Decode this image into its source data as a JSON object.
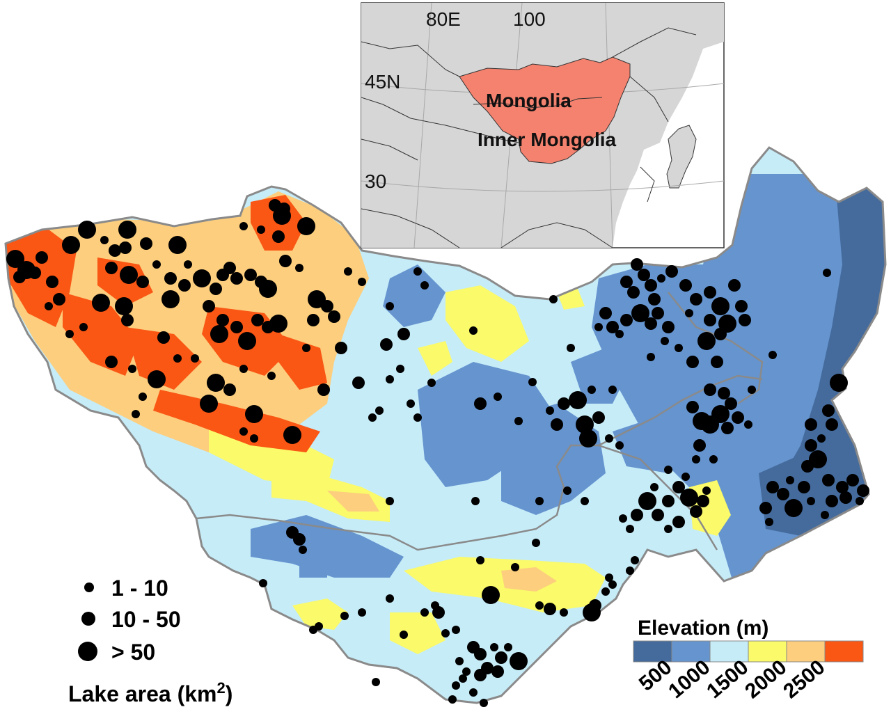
{
  "inset": {
    "lon_labels": [
      "80E",
      "100"
    ],
    "lat_labels": [
      "45N",
      "30"
    ],
    "regions": [
      "Mongolia",
      "Inner Mongolia"
    ],
    "colors": {
      "land": "#d6d6d6",
      "highlight": "#f4826f",
      "graticule": "#a8a8a8"
    }
  },
  "lake_legend": {
    "classes": [
      "1 - 10",
      "10 - 50",
      "> 50"
    ],
    "title": "Lake area (km",
    "title_sup": "2",
    "title_end": ")"
  },
  "elevation_legend": {
    "title": "Elevation (m)",
    "ticks": [
      "500",
      "1000",
      "1500",
      "2000",
      "2500"
    ],
    "colors": [
      "#456b9d",
      "#6594cf",
      "#c6ecf8",
      "#fafa6a",
      "#fcce7e",
      "#fa5614"
    ]
  },
  "map_colors": {
    "lowland": "#c6ecf8",
    "plain": "#6594cf",
    "deep": "#456b9d",
    "yellow": "#fafa6a",
    "orange": "#fcce7e",
    "red": "#fa5614",
    "border": "#8a8a8a",
    "lake": "#000000"
  }
}
